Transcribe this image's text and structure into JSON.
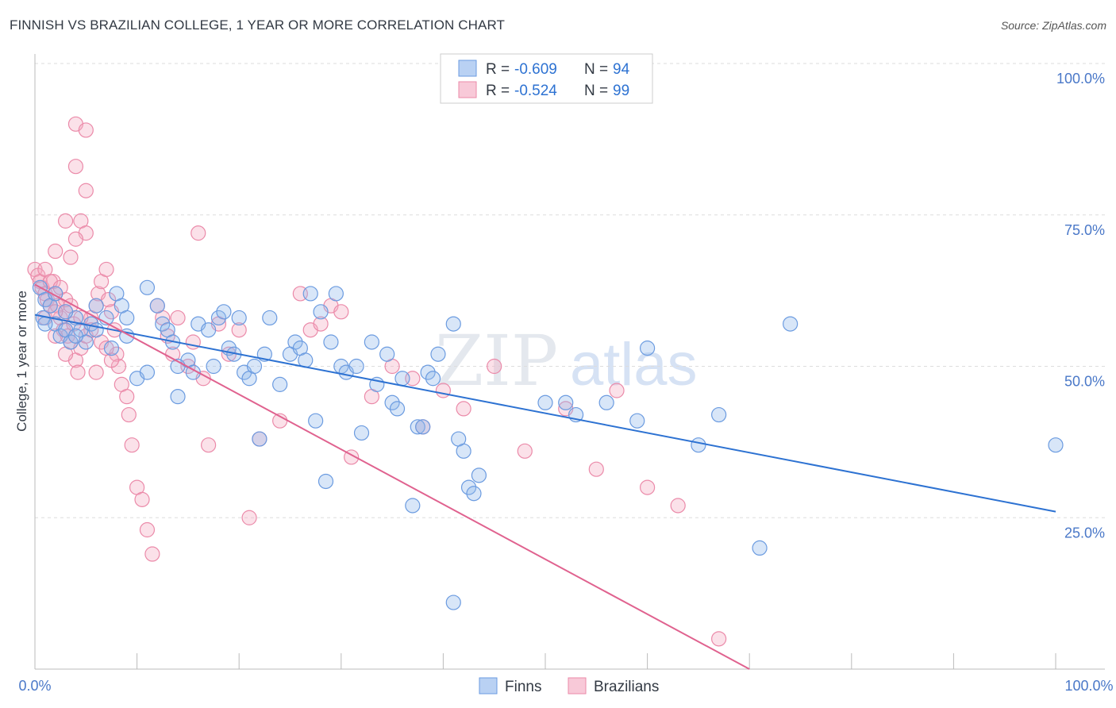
{
  "title": "FINNISH VS BRAZILIAN COLLEGE, 1 YEAR OR MORE CORRELATION CHART",
  "source": "Source: ZipAtlas.com",
  "watermark": {
    "zip": "ZIP",
    "atlas": "atlas"
  },
  "colors": {
    "finns_fill": "#8fb6ea",
    "finns_stroke": "#6b9be0",
    "finns_line": "#2d72d2",
    "braz_fill": "#f4a9c0",
    "braz_stroke": "#eb8aa9",
    "braz_line": "#e0628f",
    "axis_text": "#4a78c8",
    "grid": "#dddddd"
  },
  "chart_data": {
    "type": "scatter",
    "title": "FINNISH VS BRAZILIAN COLLEGE, 1 YEAR OR MORE CORRELATION CHART",
    "xlabel": "",
    "ylabel": "College, 1 year or more",
    "xlim": [
      0,
      100
    ],
    "ylim": [
      0,
      100
    ],
    "x_tick_labels": [
      "0.0%",
      "100.0%"
    ],
    "y_ticks": [
      25,
      50,
      75,
      100
    ],
    "y_tick_labels": [
      "25.0%",
      "50.0%",
      "75.0%",
      "100.0%"
    ],
    "grid": true,
    "legend_position": "top-center",
    "series": [
      {
        "name": "Finns",
        "r_label": "R = ",
        "r_value": "-0.609",
        "n_label": "N = ",
        "n_value": "94",
        "trend": {
          "x": [
            0,
            100
          ],
          "y": [
            58.5,
            26.0
          ]
        },
        "points": [
          [
            0.5,
            63
          ],
          [
            0.8,
            58
          ],
          [
            1,
            61
          ],
          [
            1.5,
            60
          ],
          [
            2,
            57
          ],
          [
            2.5,
            55
          ],
          [
            3,
            56
          ],
          [
            3.5,
            54
          ],
          [
            4,
            58
          ],
          [
            4.5,
            56
          ],
          [
            5,
            54
          ],
          [
            5.5,
            57
          ],
          [
            6,
            56
          ],
          [
            7,
            58
          ],
          [
            7.5,
            53
          ],
          [
            8,
            62
          ],
          [
            8.5,
            60
          ],
          [
            9,
            58
          ],
          [
            10,
            48
          ],
          [
            11,
            63
          ],
          [
            12,
            60
          ],
          [
            12.5,
            57
          ],
          [
            13,
            56
          ],
          [
            13.5,
            54
          ],
          [
            14,
            45
          ],
          [
            15,
            51
          ],
          [
            15.5,
            49
          ],
          [
            16,
            57
          ],
          [
            17,
            56
          ],
          [
            17.5,
            50
          ],
          [
            18,
            58
          ],
          [
            18.5,
            59
          ],
          [
            19,
            53
          ],
          [
            19.5,
            52
          ],
          [
            20,
            58
          ],
          [
            20.5,
            49
          ],
          [
            21,
            48
          ],
          [
            21.5,
            50
          ],
          [
            22,
            38
          ],
          [
            22.5,
            52
          ],
          [
            23,
            58
          ],
          [
            24,
            47
          ],
          [
            25,
            52
          ],
          [
            25.5,
            54
          ],
          [
            26,
            53
          ],
          [
            26.5,
            51
          ],
          [
            27,
            62
          ],
          [
            27.5,
            41
          ],
          [
            28,
            59
          ],
          [
            28.5,
            31
          ],
          [
            29,
            54
          ],
          [
            29.5,
            62
          ],
          [
            30,
            50
          ],
          [
            30.5,
            49
          ],
          [
            31.5,
            50
          ],
          [
            32,
            39
          ],
          [
            33,
            54
          ],
          [
            33.5,
            47
          ],
          [
            34.5,
            52
          ],
          [
            35,
            44
          ],
          [
            35.5,
            43
          ],
          [
            36,
            48
          ],
          [
            37,
            27
          ],
          [
            37.5,
            40
          ],
          [
            38,
            40
          ],
          [
            38.5,
            49
          ],
          [
            39,
            48
          ],
          [
            39.5,
            52
          ],
          [
            41,
            57
          ],
          [
            41.5,
            38
          ],
          [
            42,
            36
          ],
          [
            42.5,
            30
          ],
          [
            43,
            29
          ],
          [
            43.5,
            32
          ],
          [
            41,
            11
          ],
          [
            50,
            44
          ],
          [
            52,
            44
          ],
          [
            53,
            42
          ],
          [
            56,
            44
          ],
          [
            59,
            41
          ],
          [
            60,
            53
          ],
          [
            65,
            37
          ],
          [
            67,
            42
          ],
          [
            71,
            20
          ],
          [
            74,
            57
          ],
          [
            100,
            37
          ],
          [
            1,
            57
          ],
          [
            2,
            62
          ],
          [
            3,
            59
          ],
          [
            4,
            55
          ],
          [
            6,
            60
          ],
          [
            9,
            55
          ],
          [
            11,
            49
          ],
          [
            14,
            50
          ]
        ]
      },
      {
        "name": "Brazilians",
        "r_label": "R = ",
        "r_value": "-0.524",
        "n_label": "N = ",
        "n_value": "99",
        "trend": {
          "x": [
            0,
            70
          ],
          "y": [
            63.5,
            0
          ]
        },
        "points": [
          [
            0,
            66
          ],
          [
            0.3,
            65
          ],
          [
            0.5,
            64
          ],
          [
            0.7,
            63
          ],
          [
            1,
            62
          ],
          [
            1.2,
            61
          ],
          [
            1.5,
            60
          ],
          [
            1.8,
            64
          ],
          [
            2,
            62
          ],
          [
            2.2,
            60
          ],
          [
            2.5,
            58
          ],
          [
            2.8,
            56
          ],
          [
            3,
            59
          ],
          [
            3.2,
            55
          ],
          [
            3.5,
            54
          ],
          [
            3.8,
            57
          ],
          [
            4,
            51
          ],
          [
            4.2,
            49
          ],
          [
            4.5,
            53
          ],
          [
            5,
            55
          ],
          [
            5.5,
            58
          ],
          [
            6,
            60
          ],
          [
            6.2,
            62
          ],
          [
            6.5,
            64
          ],
          [
            7,
            66
          ],
          [
            7.2,
            61
          ],
          [
            7.5,
            59
          ],
          [
            7.8,
            56
          ],
          [
            8,
            52
          ],
          [
            8.2,
            50
          ],
          [
            8.5,
            47
          ],
          [
            9,
            45
          ],
          [
            9.2,
            42
          ],
          [
            9.5,
            37
          ],
          [
            10,
            30
          ],
          [
            10.5,
            28
          ],
          [
            11,
            23
          ],
          [
            11.5,
            19
          ],
          [
            12,
            60
          ],
          [
            12.5,
            58
          ],
          [
            13,
            55
          ],
          [
            13.5,
            52
          ],
          [
            14,
            58
          ],
          [
            15,
            50
          ],
          [
            15.5,
            54
          ],
          [
            16,
            72
          ],
          [
            16.5,
            48
          ],
          [
            17,
            37
          ],
          [
            18,
            57
          ],
          [
            19,
            52
          ],
          [
            20,
            56
          ],
          [
            21,
            25
          ],
          [
            22,
            38
          ],
          [
            24,
            41
          ],
          [
            26,
            62
          ],
          [
            27,
            56
          ],
          [
            28,
            57
          ],
          [
            29,
            60
          ],
          [
            30,
            59
          ],
          [
            31,
            35
          ],
          [
            33,
            45
          ],
          [
            35,
            50
          ],
          [
            37,
            48
          ],
          [
            38,
            40
          ],
          [
            40,
            46
          ],
          [
            42,
            43
          ],
          [
            45,
            50
          ],
          [
            48,
            36
          ],
          [
            52,
            43
          ],
          [
            55,
            33
          ],
          [
            57,
            46
          ],
          [
            60,
            30
          ],
          [
            63,
            27
          ],
          [
            67,
            5
          ],
          [
            4,
            90
          ],
          [
            5,
            89
          ],
          [
            4,
            83
          ],
          [
            5,
            79
          ],
          [
            3,
            74
          ],
          [
            4.5,
            74
          ],
          [
            5,
            72
          ],
          [
            3.5,
            68
          ],
          [
            2,
            69
          ],
          [
            4,
            71
          ],
          [
            1,
            66
          ],
          [
            1.5,
            64
          ],
          [
            2.5,
            63
          ],
          [
            3,
            61
          ],
          [
            3.5,
            60
          ],
          [
            4.5,
            58
          ],
          [
            5.5,
            56
          ],
          [
            6.5,
            54
          ],
          [
            7,
            53
          ],
          [
            7.5,
            51
          ],
          [
            1,
            58
          ],
          [
            2,
            55
          ],
          [
            3,
            52
          ],
          [
            6,
            49
          ],
          [
            2,
            59
          ]
        ]
      }
    ]
  }
}
